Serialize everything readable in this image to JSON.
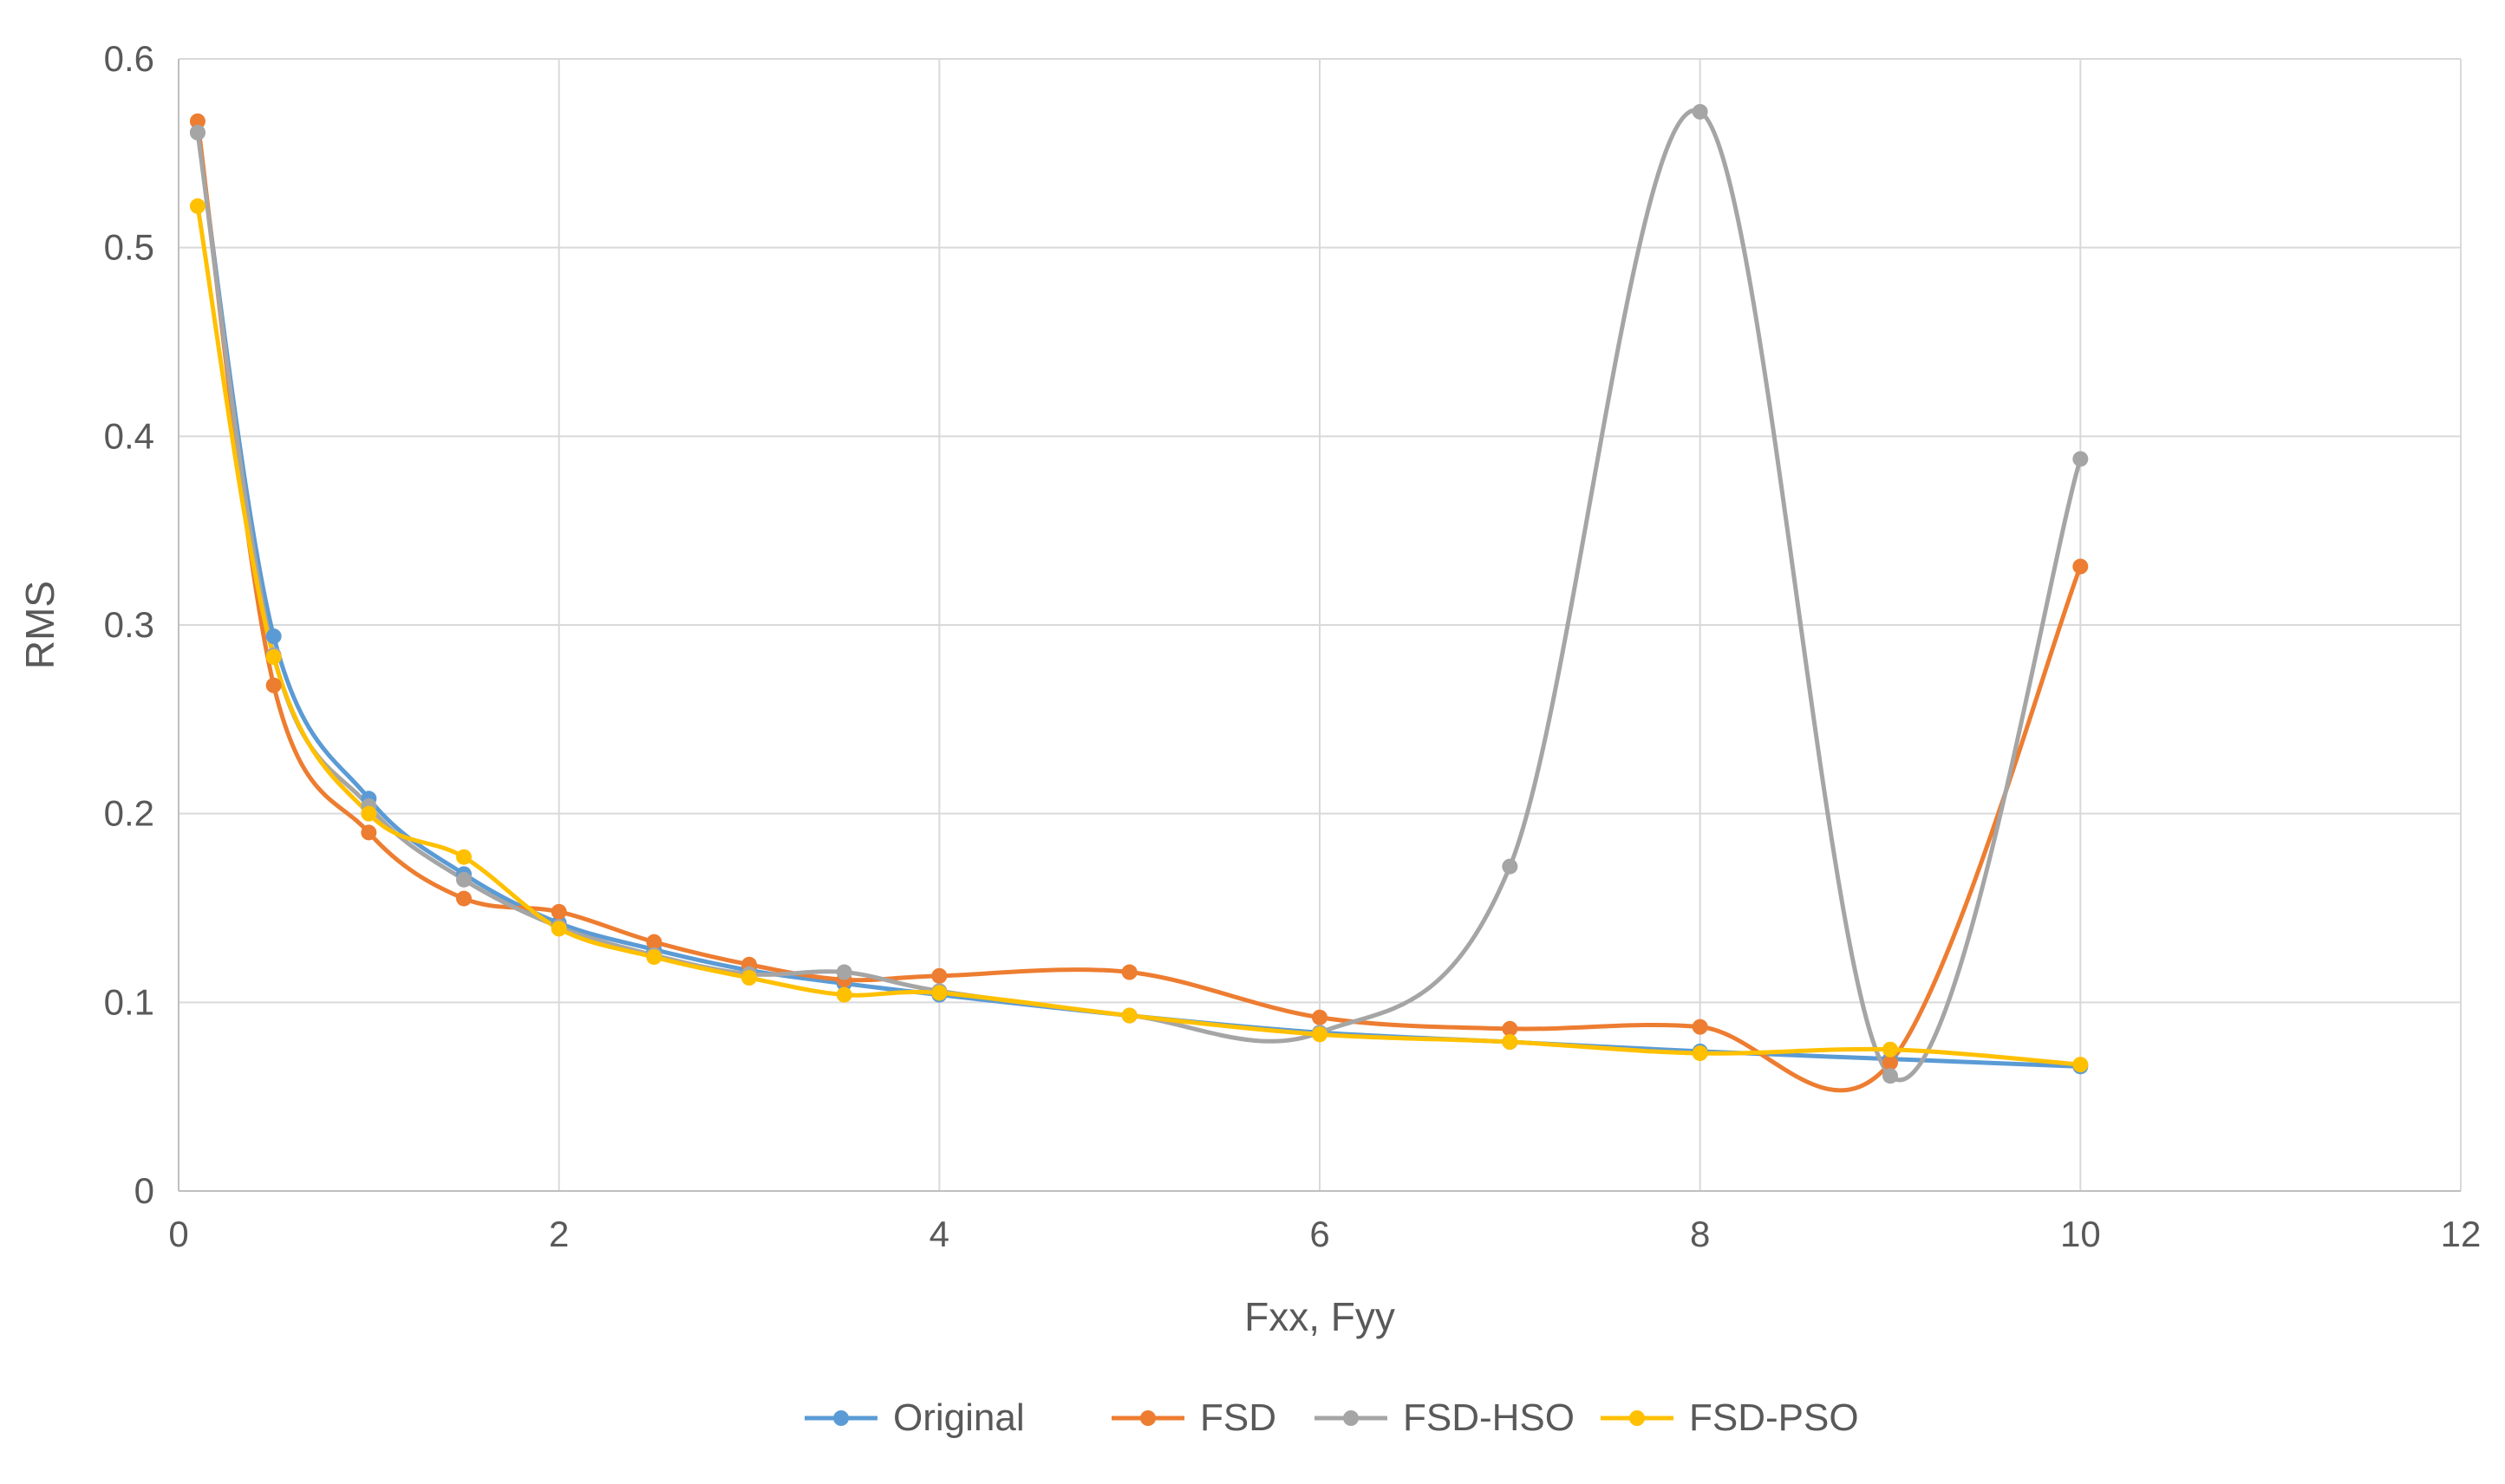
{
  "chart_data": {
    "type": "line",
    "title": "",
    "xlabel": "Fxx, Fyy",
    "ylabel": "RMS",
    "xlim": [
      0,
      12
    ],
    "ylim": [
      0,
      0.6
    ],
    "x_ticks": [
      "0",
      "2",
      "4",
      "6",
      "8",
      "10",
      "12"
    ],
    "y_ticks": [
      "0",
      "0.1",
      "0.2",
      "0.3",
      "0.4",
      "0.5",
      "0.6"
    ],
    "x_tick_values": [
      0,
      2,
      4,
      6,
      8,
      10,
      12
    ],
    "y_tick_values": [
      0,
      0.1,
      0.2,
      0.3,
      0.4,
      0.5,
      0.6
    ],
    "grid": true,
    "legend_position": "bottom",
    "series": [
      {
        "name": "Original",
        "color": "#5B9BD5",
        "x": [
          0.1,
          0.5,
          1,
          1.5,
          2,
          2.5,
          3,
          3.5,
          4,
          5,
          6,
          7,
          8,
          9,
          10
        ],
        "y": [
          0.561,
          0.294,
          0.208,
          0.168,
          0.142,
          0.128,
          0.117,
          0.11,
          0.104,
          0.093,
          0.084,
          0.079,
          0.074,
          0.07,
          0.066
        ]
      },
      {
        "name": "FSD",
        "color": "#ED7D31",
        "x": [
          0.1,
          0.5,
          1,
          1.5,
          2,
          2.5,
          3,
          3.5,
          4,
          5,
          6,
          7,
          8,
          9,
          10
        ],
        "y": [
          0.567,
          0.268,
          0.19,
          0.155,
          0.148,
          0.132,
          0.12,
          0.112,
          0.114,
          0.116,
          0.092,
          0.086,
          0.087,
          0.068,
          0.331
        ]
      },
      {
        "name": "FSD-HSO",
        "color": "#A5A5A5",
        "x": [
          0.1,
          0.5,
          1,
          1.5,
          2,
          2.5,
          3,
          3.5,
          4,
          5,
          6,
          7,
          8,
          9,
          10
        ],
        "y": [
          0.561,
          0.284,
          0.204,
          0.165,
          0.14,
          0.125,
          0.115,
          0.116,
          0.106,
          0.093,
          0.084,
          0.172,
          0.572,
          0.061,
          0.388
        ]
      },
      {
        "name": "FSD-PSO",
        "color": "#FFC000",
        "x": [
          0.1,
          0.5,
          1,
          1.5,
          2,
          2.5,
          3,
          3.5,
          4,
          5,
          6,
          7,
          8,
          9,
          10
        ],
        "y": [
          0.522,
          0.283,
          0.2,
          0.177,
          0.139,
          0.124,
          0.113,
          0.104,
          0.105,
          0.093,
          0.083,
          0.079,
          0.073,
          0.075,
          0.067
        ]
      }
    ]
  }
}
